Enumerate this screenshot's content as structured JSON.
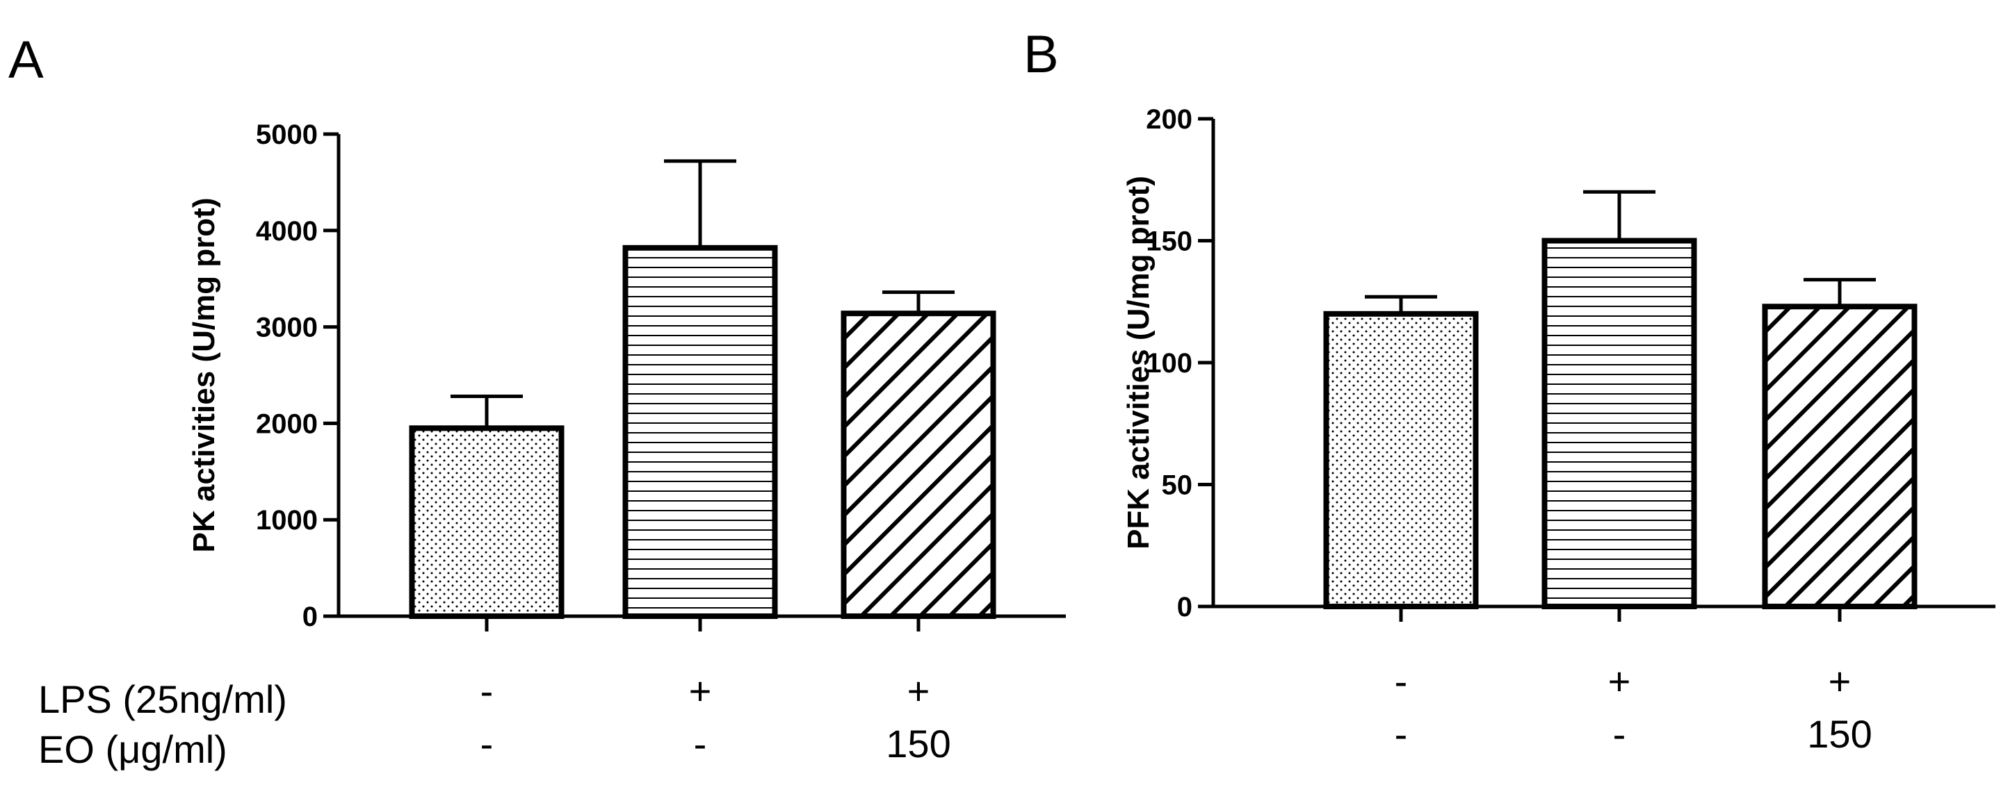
{
  "panels": [
    {
      "letter": "A"
    },
    {
      "letter": "B"
    }
  ],
  "conditions": {
    "row_labels": [
      "LPS (25ng/ml)",
      "EO (μg/ml)"
    ],
    "panel_a": {
      "lps": [
        "-",
        "+",
        "+"
      ],
      "eo": [
        "-",
        "-",
        "150"
      ]
    },
    "panel_b": {
      "lps": [
        "-",
        "+",
        "+"
      ],
      "eo": [
        "-",
        "-",
        "150"
      ]
    }
  },
  "chart_data": [
    {
      "type": "bar",
      "panel": "A",
      "title": "",
      "xlabel": "",
      "ylabel": "PK activities (U/mg prot)",
      "ylim": [
        0,
        5000
      ],
      "yticks": [
        0,
        1000,
        2000,
        3000,
        4000,
        5000
      ],
      "values": [
        1950,
        3820,
        3140
      ],
      "errors": [
        330,
        900,
        220
      ],
      "patterns": [
        "dots",
        "horizontal",
        "diagonal"
      ],
      "grid": false,
      "legend": "none"
    },
    {
      "type": "bar",
      "panel": "B",
      "title": "",
      "xlabel": "",
      "ylabel": "PFK activities (U/mg prot)",
      "ylim": [
        0,
        200
      ],
      "yticks": [
        0,
        50,
        100,
        150,
        200
      ],
      "values": [
        120,
        150,
        123
      ],
      "errors": [
        7,
        20,
        11
      ],
      "patterns": [
        "dots",
        "horizontal",
        "diagonal"
      ],
      "grid": false,
      "legend": "none"
    }
  ]
}
